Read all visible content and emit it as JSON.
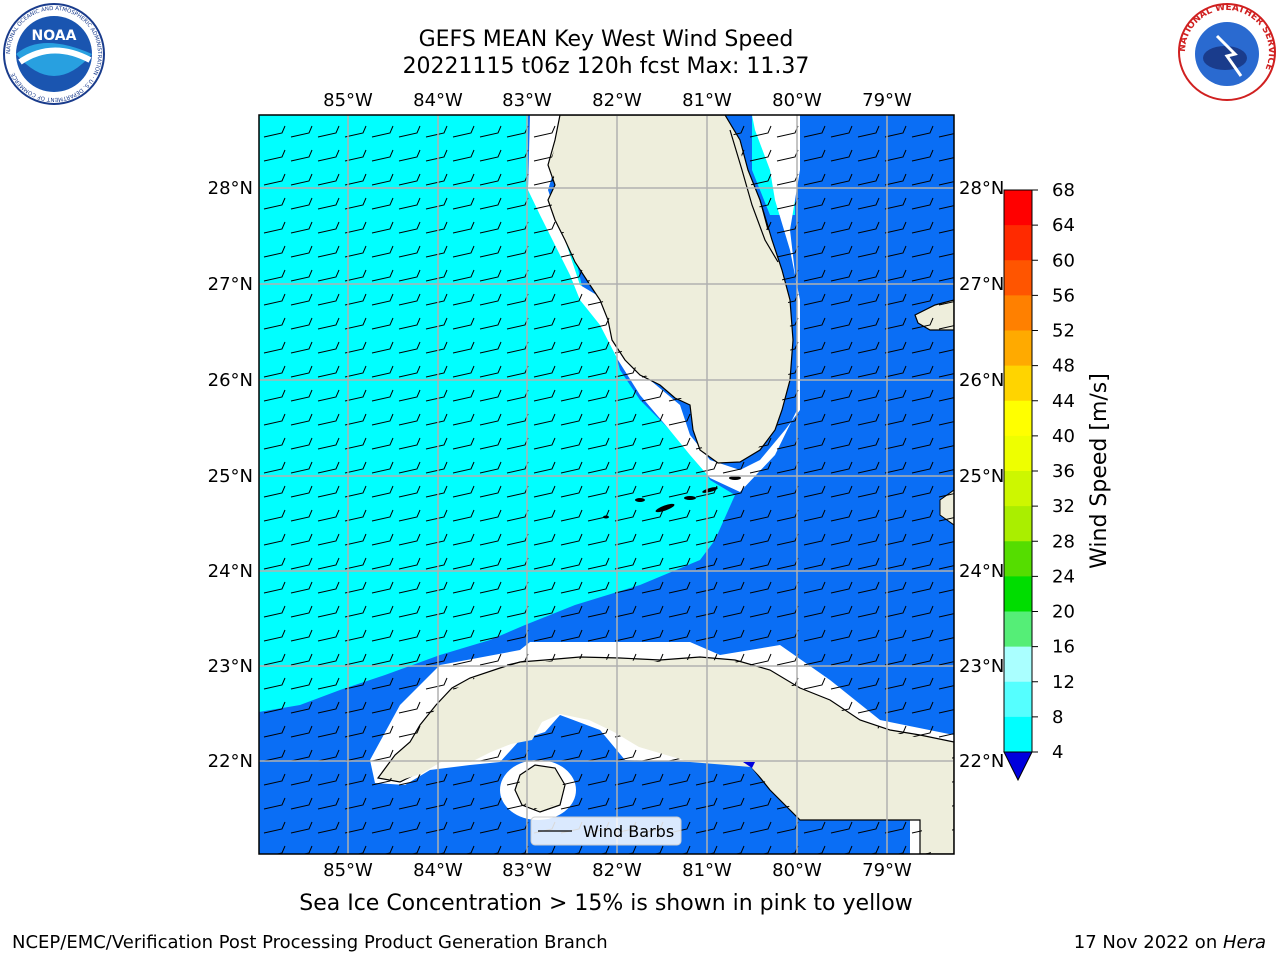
{
  "header": {
    "title": "GEFS MEAN Key West Wind Speed",
    "subtitle": "20221115 t06z 120h fcst   Max: 11.37"
  },
  "logos": {
    "noaa_text": "NOAA",
    "noaa_ring": "NATIONAL OCEANIC AND ATMOSPHERIC ADMINISTRATION · U.S. DEPARTMENT OF COMMERCE",
    "nws_ring": "NATIONAL WEATHER SERVICE"
  },
  "map": {
    "lon_labels": [
      "85°W",
      "84°W",
      "83°W",
      "82°W",
      "81°W",
      "80°W",
      "79°W"
    ],
    "lat_labels": [
      "28°N",
      "27°N",
      "26°N",
      "25°N",
      "24°N",
      "23°N",
      "22°N"
    ],
    "legend_label": "Wind Barbs",
    "colors": {
      "ocean_8_12": "#00ffff",
      "ocean_4_8": "#0a6ef5",
      "land": "#eeeedc",
      "gridlines": "#b0b0b0"
    }
  },
  "colorbar": {
    "label": "Wind Speed [m/s]",
    "ticks": [
      "68",
      "64",
      "60",
      "56",
      "52",
      "48",
      "44",
      "40",
      "36",
      "32",
      "28",
      "24",
      "20",
      "16",
      "12",
      "8",
      "4"
    ],
    "colors": [
      "#ff0000",
      "#ff2a00",
      "#ff5500",
      "#ff8000",
      "#ffaa00",
      "#ffd400",
      "#ffff00",
      "#eeff00",
      "#cdf700",
      "#aaee00",
      "#55dd00",
      "#00dd00",
      "#55ee77",
      "#aaffff",
      "#55ffff",
      "#00ffff",
      "#0a6ef5"
    ],
    "below_color": "#0000dd"
  },
  "footer": {
    "caption": "Sea Ice Concentration > 15% is shown in pink to yellow",
    "left": "NCEP/EMC/Verification Post Processing Product Generation Branch",
    "right_date": "17 Nov 2022 on ",
    "right_machine": "Hera"
  }
}
